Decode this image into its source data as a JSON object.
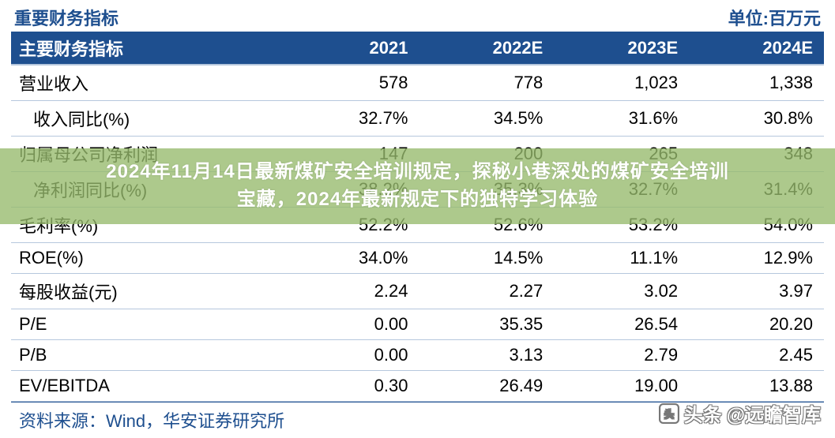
{
  "header": {
    "title": "重要财务指标",
    "unit": "单位:百万元"
  },
  "table": {
    "header_bg": "#1e4f8f",
    "header_fg": "#ffffff",
    "row_border": "#b6c7dd",
    "text_color": "#000000",
    "columns": [
      "主要财务指标",
      "2021",
      "2022E",
      "2023E",
      "2024E"
    ],
    "rows": [
      {
        "label": "营业收入",
        "indent": false,
        "cells": [
          "578",
          "778",
          "1,023",
          "1,338"
        ]
      },
      {
        "label": "收入同比(%)",
        "indent": true,
        "cells": [
          "32.7%",
          "34.5%",
          "31.6%",
          "30.8%"
        ]
      },
      {
        "label": "归属母公司净利润",
        "indent": false,
        "cells": [
          "147",
          "200",
          "265",
          "348"
        ]
      },
      {
        "label": "净利润同比(%)",
        "indent": true,
        "cells": [
          "38.2%",
          "35.3%",
          "32.7%",
          "31.4%"
        ]
      },
      {
        "label": "毛利率(%)",
        "indent": false,
        "cells": [
          "52.2%",
          "52.6%",
          "53.2%",
          "54.0%"
        ]
      },
      {
        "label": "ROE(%)",
        "indent": false,
        "cells": [
          "34.0%",
          "14.5%",
          "11.1%",
          "12.9%"
        ]
      },
      {
        "label": "每股收益(元)",
        "indent": false,
        "cells": [
          "2.24",
          "2.27",
          "3.02",
          "3.97"
        ]
      },
      {
        "label": "P/E",
        "indent": false,
        "cells": [
          "0.00",
          "35.35",
          "26.54",
          "20.20"
        ]
      },
      {
        "label": "P/B",
        "indent": false,
        "cells": [
          "0.00",
          "3.13",
          "2.79",
          "2.45"
        ]
      },
      {
        "label": "EV/EBITDA",
        "indent": false,
        "cells": [
          "0.30",
          "26.49",
          "19.00",
          "13.88"
        ]
      }
    ]
  },
  "source": "资料来源：Wind，华安证券研究所",
  "overlay": {
    "bg": "rgba(150,186,108,0.78)",
    "text_color": "#ffffff",
    "line1": "2024年11月14日最新煤矿安全培训规定，探秘小巷深处的煤矿安全培训",
    "line2": "宝藏，2024年最新规定下的独特学习体验"
  },
  "watermark": {
    "prefix": "头条",
    "handle": "@远瞻智库"
  }
}
